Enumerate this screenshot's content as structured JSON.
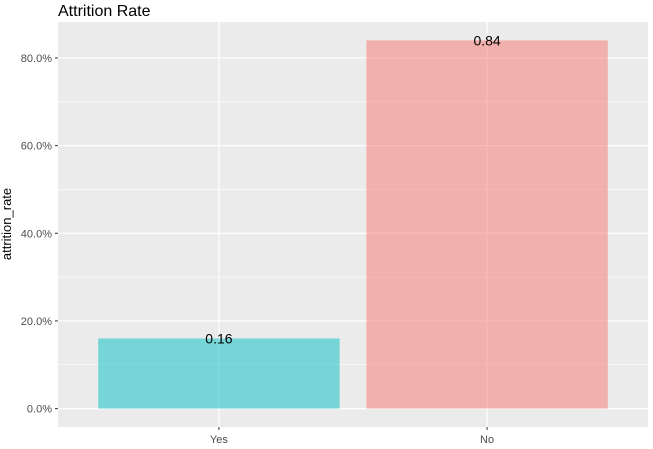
{
  "chart_data": {
    "type": "bar",
    "title": "Attrition Rate",
    "xlabel": "",
    "ylabel": "attrition_rate",
    "categories": [
      "Yes",
      "No"
    ],
    "values": [
      0.16,
      0.84
    ],
    "data_labels": [
      "0.16",
      "0.84"
    ],
    "bar_colors": [
      "#00BFC4",
      "#F8766D"
    ],
    "bar_opacity": 0.5,
    "ylim": [
      -0.042,
      0.882
    ],
    "y_ticks": [
      0.0,
      0.2,
      0.4,
      0.6,
      0.8
    ],
    "y_tick_labels": [
      "0.0%",
      "20.0%",
      "40.0%",
      "60.0%",
      "80.0%"
    ],
    "grid": true,
    "legend": "none",
    "panel_background": "#EBEBEB"
  }
}
